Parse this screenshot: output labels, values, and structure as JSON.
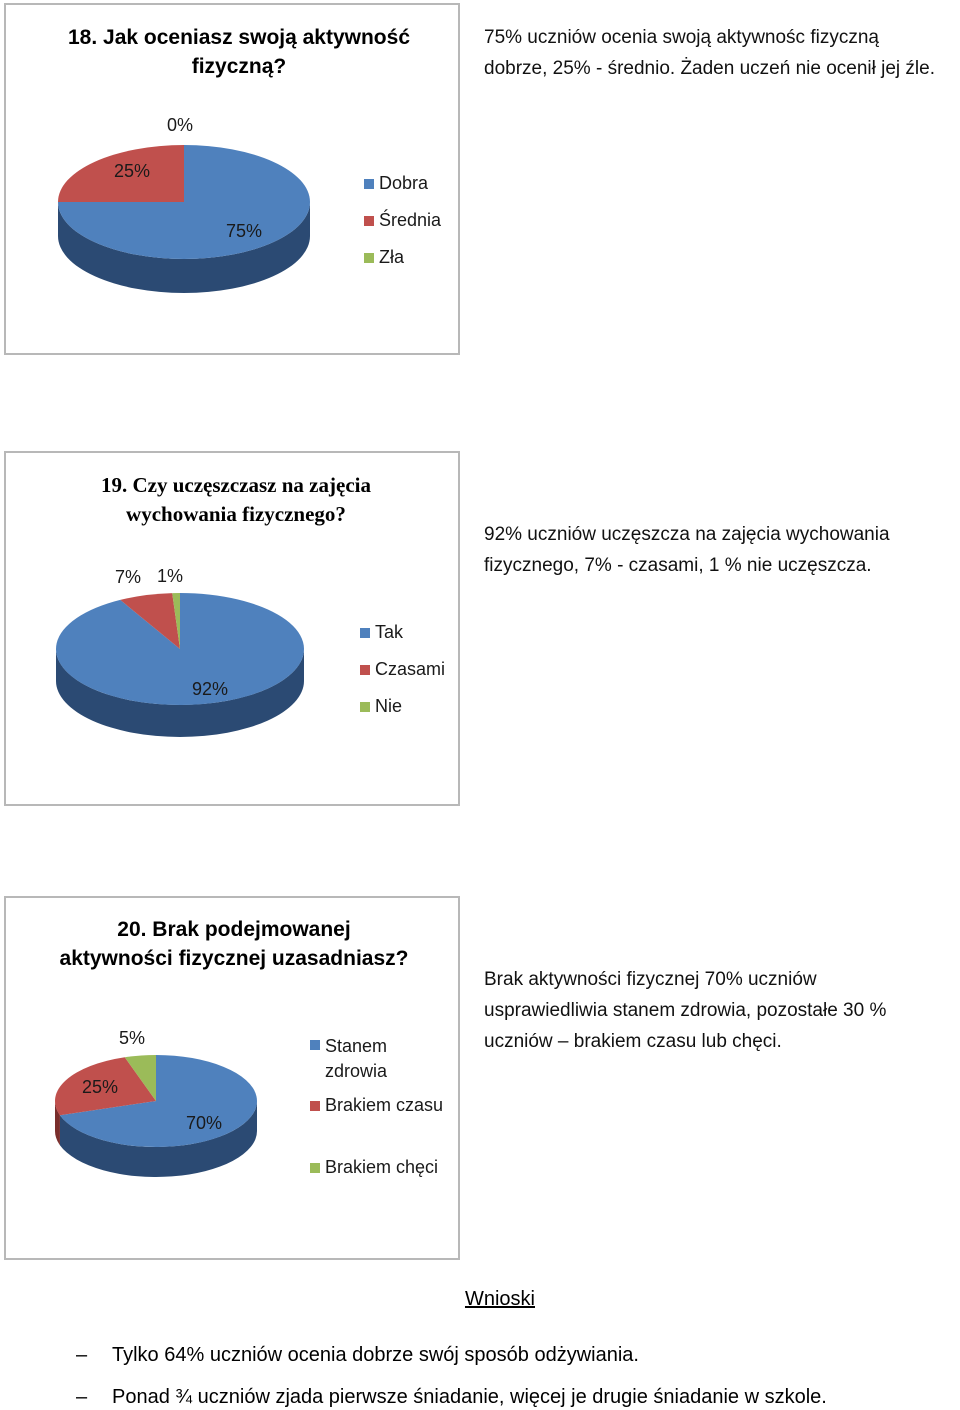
{
  "colors": {
    "blue": "#4f81bd",
    "blue_dark": "#2b4a73",
    "red": "#c0504d",
    "red_dark": "#7a2e2c",
    "green": "#9bbb59",
    "green_dark": "#627a36"
  },
  "chart_data": [
    {
      "type": "pie",
      "title": "18. Jak oceniasz swoją aktywność\nfizyczną?",
      "categories": [
        "Dobra",
        "Średnia",
        "Zła"
      ],
      "values": [
        75,
        25,
        0
      ],
      "value_labels": [
        "75%",
        "25%",
        "0%"
      ],
      "legend_placement": "right"
    },
    {
      "type": "pie",
      "title": "19. Czy uczęszczasz na zajęcia\nwychowania fizycznego?",
      "categories": [
        "Tak",
        "Czasami",
        "Nie"
      ],
      "values": [
        92,
        7,
        1
      ],
      "value_labels": [
        "92%",
        "7%",
        "1%"
      ],
      "legend_placement": "right"
    },
    {
      "type": "pie",
      "title": "20. Brak podejmowanej\naktywności fizycznej uzasadniasz?",
      "categories": [
        "Stanem\nzdrowia",
        "Brakiem czasu",
        "Brakiem chęci"
      ],
      "values": [
        70,
        25,
        5
      ],
      "value_labels": [
        "70%",
        "25%",
        "5%"
      ],
      "legend_placement": "right"
    }
  ],
  "descriptions": [
    "75% uczniów ocenia swoją aktywnośc fizyczną dobrze, 25% - średnio. Żaden uczeń nie ocenił jej źle.",
    "92% uczniów uczęszcza  na zajęcia wychowania fizycznego, 7% - czasami, 1 % nie uczęszcza.",
    "Brak aktywności fizycznej 70% uczniów usprawiedliwia stanem zdrowia, pozostałe 30 % uczniów – brakiem czasu lub chęci."
  ],
  "conclusions": {
    "heading": "Wnioski",
    "bullet_symbol": "–",
    "items": [
      "Tylko 64% uczniów ocenia dobrze swój sposób odżywiania.",
      "Ponad ¾ uczniów zjada pierwsze śniadanie, więcej je drugie śniadanie w szkole."
    ]
  }
}
